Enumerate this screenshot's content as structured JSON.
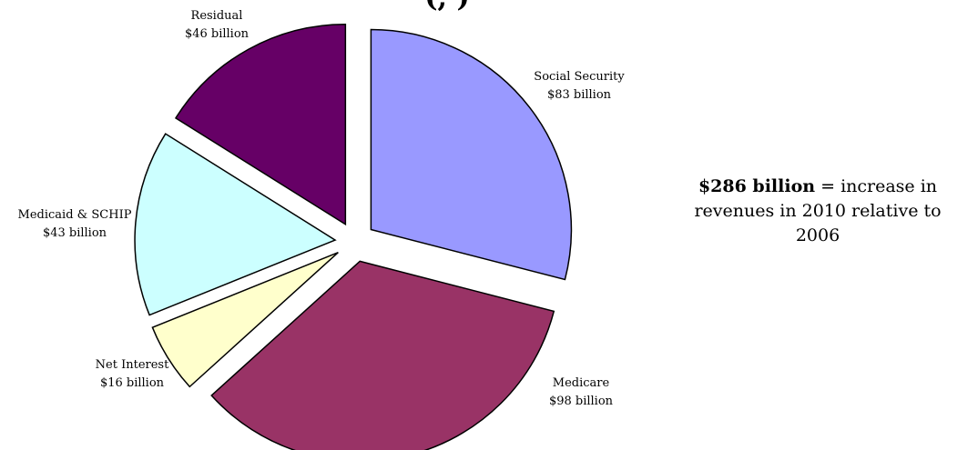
{
  "chart_data": {
    "type": "pie",
    "title_fragment": "(,   )",
    "unit": "billion",
    "slices": [
      {
        "name": "Social Security",
        "value": 83,
        "label_value": "$83 billion",
        "color": "#9999ff"
      },
      {
        "name": "Medicare",
        "value": 98,
        "label_value": "$98 billion",
        "color": "#993366"
      },
      {
        "name": "Net Interest",
        "value": 16,
        "label_value": "$16 billion",
        "color": "#ffffcc"
      },
      {
        "name": "Medicaid & SCHIP",
        "value": 43,
        "label_value": "$43 billion",
        "color": "#ccffff"
      },
      {
        "name": "Residual",
        "value": 46,
        "label_value": "$46 billion",
        "color": "#660066"
      }
    ],
    "exploded": true,
    "slice_border_color": "#000000"
  },
  "summary": {
    "bold": "$286 billion",
    "text": " = increase in revenues in 2010 relative to 2006"
  }
}
